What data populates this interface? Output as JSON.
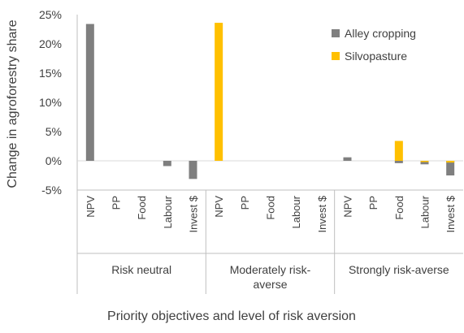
{
  "chart_data": {
    "type": "bar",
    "title": "",
    "xlabel": "Priority objectives and level of risk aversion",
    "ylabel": "Change in agroforestry share",
    "ylim": [
      -5,
      25
    ],
    "yticks": [
      -5,
      0,
      5,
      10,
      15,
      20,
      25
    ],
    "ytick_labels": [
      "-5%",
      "0%",
      "5%",
      "10%",
      "15%",
      "20%",
      "25%"
    ],
    "grid": false,
    "legend_position": "top-right",
    "groups": [
      {
        "label": "Risk neutral",
        "categories": [
          "NPV",
          "PP",
          "Food",
          "Labour",
          "Invest $"
        ]
      },
      {
        "label": "Moderately risk-\naverse",
        "categories": [
          "NPV",
          "PP",
          "Food",
          "Labour",
          "Invest $"
        ]
      },
      {
        "label": "Strongly risk-averse",
        "categories": [
          "NPV",
          "PP",
          "Food",
          "Labour",
          "Invest $"
        ]
      }
    ],
    "series": [
      {
        "name": "Alley cropping",
        "color": "#7f7f7f",
        "values": [
          23.4,
          0,
          0,
          -0.9,
          -3.1,
          0,
          0,
          0,
          0,
          0,
          0.6,
          0,
          -0.4,
          -0.6,
          -2.5
        ]
      },
      {
        "name": "Silvopasture",
        "color": "#ffc000",
        "values": [
          0,
          0,
          0,
          0,
          0,
          23.6,
          0,
          0,
          0,
          0,
          0,
          0,
          3.4,
          -0.2,
          -0.3
        ]
      }
    ]
  }
}
